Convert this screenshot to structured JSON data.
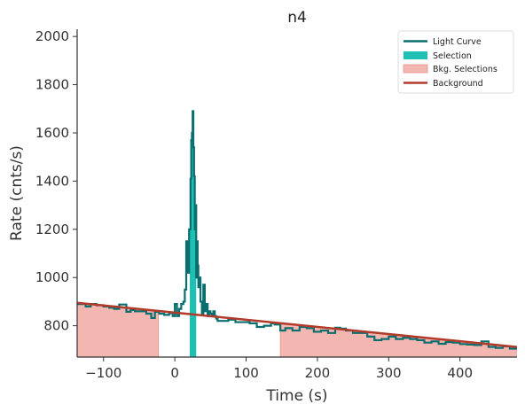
{
  "chart_data": {
    "type": "line",
    "title": "n4",
    "xlabel": "Time (s)",
    "ylabel": "Rate (cnts/s)",
    "xlim": [
      -137,
      480
    ],
    "ylim": [
      670,
      2030
    ],
    "x_ticks": [
      -100,
      0,
      100,
      200,
      300,
      400
    ],
    "y_ticks": [
      800,
      1000,
      1200,
      1400,
      1600,
      1800,
      2000
    ],
    "legend": {
      "placement": "top-right",
      "entries": [
        {
          "label": "Light Curve",
          "kind": "line",
          "color": "#0b6e6e"
        },
        {
          "label": "Selection",
          "kind": "patch",
          "color": "#1fbfb4"
        },
        {
          "label": "Bkg. Selections",
          "kind": "patch",
          "color": "#f4b6b0"
        },
        {
          "label": "Background",
          "kind": "line",
          "color": "#b23a2a"
        }
      ]
    },
    "colors": {
      "light_curve": "#0b6e6e",
      "selection": "#1fbfb4",
      "bkg_selection": "#f4b6b0",
      "bkg_selection_edge": "#e6948b",
      "background": "#b23a2a",
      "axis": "#333333"
    },
    "background_model": {
      "name": "Background",
      "x": [
        -137,
        480
      ],
      "y": [
        895,
        712
      ]
    },
    "bkg_selections": [
      {
        "x_start": -137,
        "x_end": -23
      },
      {
        "x_start": 148,
        "x_end": 480
      }
    ],
    "selection": {
      "x_start": 21,
      "x_end": 30
    },
    "light_curve": {
      "name": "Light Curve",
      "x": [
        -137,
        -125,
        -118,
        -110,
        -100,
        -92,
        -85,
        -78,
        -68,
        -62,
        -56,
        -48,
        -40,
        -33,
        -28,
        -22,
        -15,
        -8,
        -3,
        0,
        3,
        6,
        9,
        12,
        14,
        16,
        18,
        20,
        22,
        23,
        24,
        25,
        26,
        27,
        28,
        29,
        30,
        31,
        32,
        33,
        34,
        36,
        38,
        40,
        42,
        44,
        46,
        48,
        50,
        52,
        54,
        56,
        58,
        60,
        68,
        75,
        85,
        95,
        105,
        115,
        125,
        135,
        140,
        148,
        155,
        165,
        175,
        185,
        195,
        205,
        215,
        225,
        232,
        240,
        250,
        260,
        270,
        280,
        290,
        300,
        310,
        320,
        330,
        340,
        350,
        360,
        370,
        380,
        390,
        400,
        410,
        420,
        430,
        440,
        450,
        460,
        470,
        480
      ],
      "y": [
        890,
        880,
        890,
        885,
        880,
        875,
        870,
        888,
        858,
        865,
        860,
        860,
        850,
        832,
        858,
        850,
        845,
        852,
        840,
        890,
        840,
        870,
        890,
        900,
        950,
        1150,
        1020,
        1200,
        1410,
        1570,
        1600,
        1690,
        1540,
        1420,
        1200,
        1300,
        1000,
        1150,
        1050,
        960,
        1000,
        900,
        850,
        970,
        860,
        890,
        840,
        860,
        850,
        845,
        860,
        840,
        830,
        820,
        820,
        825,
        815,
        815,
        810,
        795,
        800,
        810,
        805,
        780,
        790,
        780,
        795,
        790,
        775,
        780,
        770,
        792,
        788,
        780,
        770,
        770,
        755,
        740,
        745,
        755,
        745,
        750,
        745,
        740,
        730,
        735,
        725,
        732,
        730,
        724,
        722,
        720,
        735,
        712,
        708,
        715,
        705,
        705
      ]
    }
  }
}
